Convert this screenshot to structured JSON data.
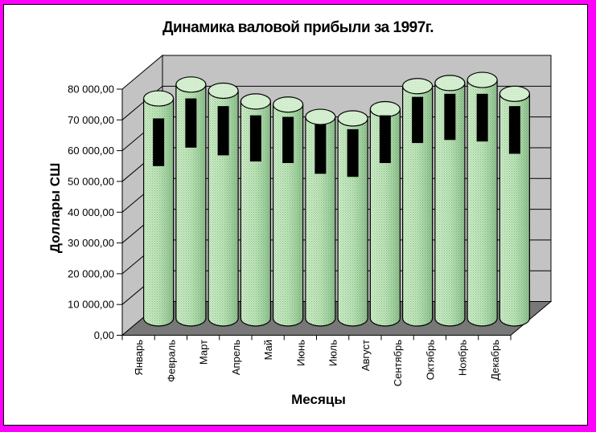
{
  "page": {
    "border_color": "#ff00ff",
    "background": "#ffffff"
  },
  "chart_data": {
    "type": "bar",
    "subtype": "3d-cylinder",
    "title": "Динамика валовой прибыли за 1997г.",
    "xlabel": "Месяцы",
    "ylabel": "Доллары СШ",
    "ylim": [
      0,
      80000
    ],
    "ytick_step": 10000,
    "ytick_labels": [
      "0,00",
      "10 000,00",
      "20 000,00",
      "30 000,00",
      "40 000,00",
      "50 000,00",
      "60 000,00",
      "70 000,00",
      "80 000,00"
    ],
    "categories": [
      "Январь",
      "Февраль",
      "Март",
      "Апрель",
      "Май",
      "Июнь",
      "Июль",
      "Август",
      "Сентябрь",
      "Октябрь",
      "Ноябрь",
      "Декабрь"
    ],
    "series": [
      {
        "name": "cylinder-series",
        "type": "cylinder",
        "color": "#bfe7ba",
        "values": [
          71500,
          76000,
          74000,
          70500,
          69500,
          65500,
          65000,
          68000,
          75500,
          76500,
          77500,
          73000
        ]
      },
      {
        "name": "black-floating-bar-series",
        "type": "floating-bar",
        "color": "#000000",
        "ranges": [
          [
            49500,
            65000
          ],
          [
            55500,
            71500
          ],
          [
            53000,
            69000
          ],
          [
            51000,
            66000
          ],
          [
            50500,
            65500
          ],
          [
            47000,
            63000
          ],
          [
            46000,
            61500
          ],
          [
            50500,
            66000
          ],
          [
            57000,
            72000
          ],
          [
            58000,
            73000
          ],
          [
            57500,
            73000
          ],
          [
            53500,
            69000
          ]
        ]
      }
    ],
    "legend": "none",
    "grid": true,
    "colors": {
      "wall": "#c3c3c3",
      "floor": "#787878",
      "cylinder_light": "#cfeec9",
      "cylinder_dark": "#8fbe8e",
      "cylinder_top": "#d9f2d4",
      "outline": "#000000",
      "text": "#000000"
    }
  }
}
